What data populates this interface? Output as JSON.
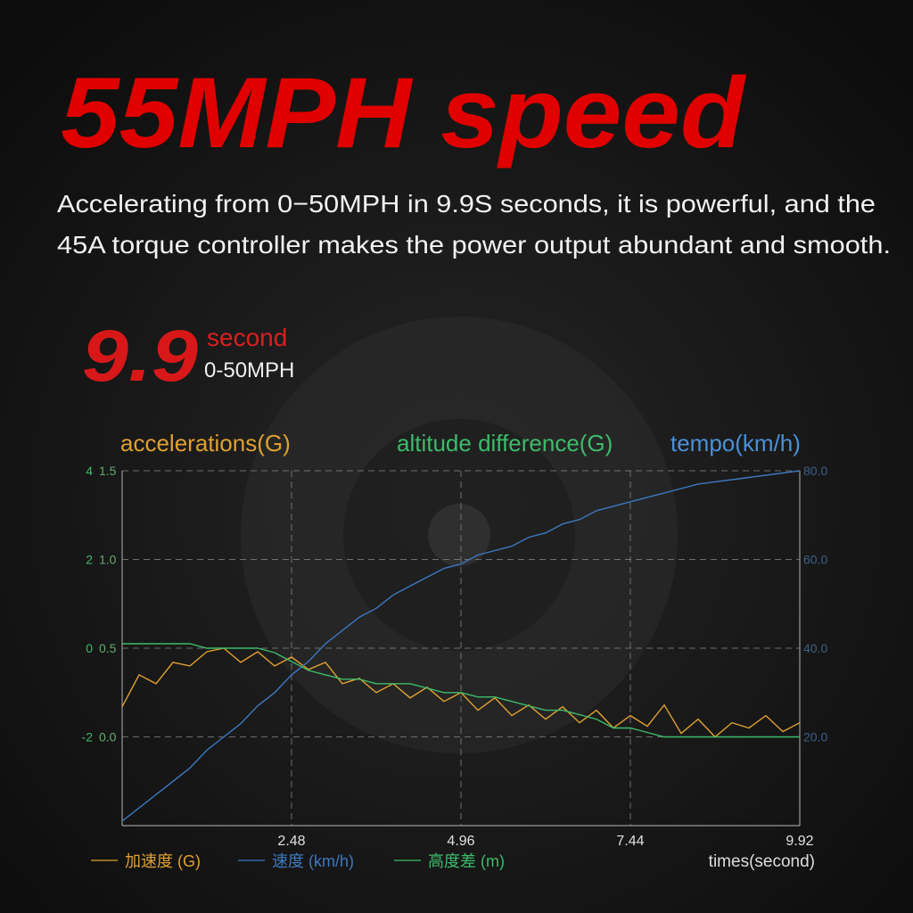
{
  "header": {
    "title": "55MPH speed",
    "description": [
      "Accelerating from 0−50MPH in 9.9S seconds, it is powerful, and the",
      "45A torque controller makes the power output abundant and smooth."
    ]
  },
  "stat": {
    "value": "9.9",
    "unit": "second",
    "label": "0-50MPH"
  },
  "chart_data": {
    "type": "line",
    "x_label": "times(second)",
    "y_label": "accelerations(G)",
    "y2_label": "tempo(km/h)",
    "y3_label": "altitude difference(G)",
    "grid": true,
    "xlim": [
      0,
      9.92
    ],
    "xticks": [
      2.48,
      4.96,
      7.44,
      9.92
    ],
    "ylim": [
      -0.5,
      1.5
    ],
    "yticks": [
      {
        "value": 0,
        "label": "0.0"
      },
      {
        "value": 0.5,
        "label": "0.5"
      },
      {
        "value": 1,
        "label": "1.0"
      },
      {
        "value": 1.5,
        "label": "1.5"
      }
    ],
    "y3lim": [
      -4,
      4
    ],
    "y3ticks": [
      -2,
      0,
      2,
      4
    ],
    "y2lim": [
      0,
      80
    ],
    "y2ticks": [
      {
        "value": 20,
        "label": "20.0"
      },
      {
        "value": 40,
        "label": "40.0"
      },
      {
        "value": 60,
        "label": "60.0"
      },
      {
        "value": 80,
        "label": "80.0"
      }
    ],
    "x": [
      0,
      0.248,
      0.496,
      0.744,
      0.992,
      1.24,
      1.488,
      1.736,
      1.984,
      2.232,
      2.48,
      2.728,
      2.976,
      3.224,
      3.472,
      3.72,
      3.968,
      4.216,
      4.464,
      4.712,
      4.96,
      5.208,
      5.456,
      5.704,
      5.952,
      6.2,
      6.448,
      6.696,
      6.944,
      7.192,
      7.44,
      7.688,
      7.936,
      8.184,
      8.432,
      8.68,
      8.928,
      9.176,
      9.424,
      9.672,
      9.92
    ],
    "series": [
      {
        "name": "加速度 (G)",
        "color": "#e0a030",
        "values": [
          0.17,
          0.35,
          0.3,
          0.42,
          0.4,
          0.48,
          0.5,
          0.42,
          0.48,
          0.4,
          0.45,
          0.38,
          0.42,
          0.3,
          0.33,
          0.25,
          0.3,
          0.22,
          0.28,
          0.2,
          0.25,
          0.15,
          0.22,
          0.12,
          0.18,
          0.1,
          0.17,
          0.08,
          0.15,
          0.05,
          0.12,
          0.06,
          0.18,
          0.02,
          0.1,
          0,
          0.08,
          0.05,
          0.12,
          0.03,
          0.08
        ]
      },
      {
        "name": "速度 (km/h)",
        "color": "#3d78c0",
        "axis": "y2",
        "values": [
          1,
          4,
          7,
          10,
          13,
          17,
          20,
          23,
          27,
          30,
          34,
          37,
          41,
          44,
          47,
          49,
          52,
          54,
          56,
          58,
          59,
          61,
          62,
          63,
          65,
          66,
          68,
          69,
          71,
          72,
          73,
          74,
          75,
          76,
          77,
          77.5,
          78,
          78.5,
          79,
          79.5,
          80
        ]
      },
      {
        "name": "高度差 (m)",
        "color": "#3dbb6a",
        "axis": "y3",
        "values": [
          0.1,
          0.1,
          0.1,
          0.1,
          0.1,
          0,
          0,
          0,
          0,
          -0.1,
          -0.3,
          -0.5,
          -0.6,
          -0.7,
          -0.7,
          -0.8,
          -0.8,
          -0.8,
          -0.9,
          -1,
          -1,
          -1.1,
          -1.1,
          -1.2,
          -1.3,
          -1.4,
          -1.4,
          -1.5,
          -1.6,
          -1.8,
          -1.8,
          -1.9,
          -2,
          -2,
          -2,
          -2,
          -2,
          -2,
          -2,
          -2,
          -2
        ]
      }
    ]
  }
}
